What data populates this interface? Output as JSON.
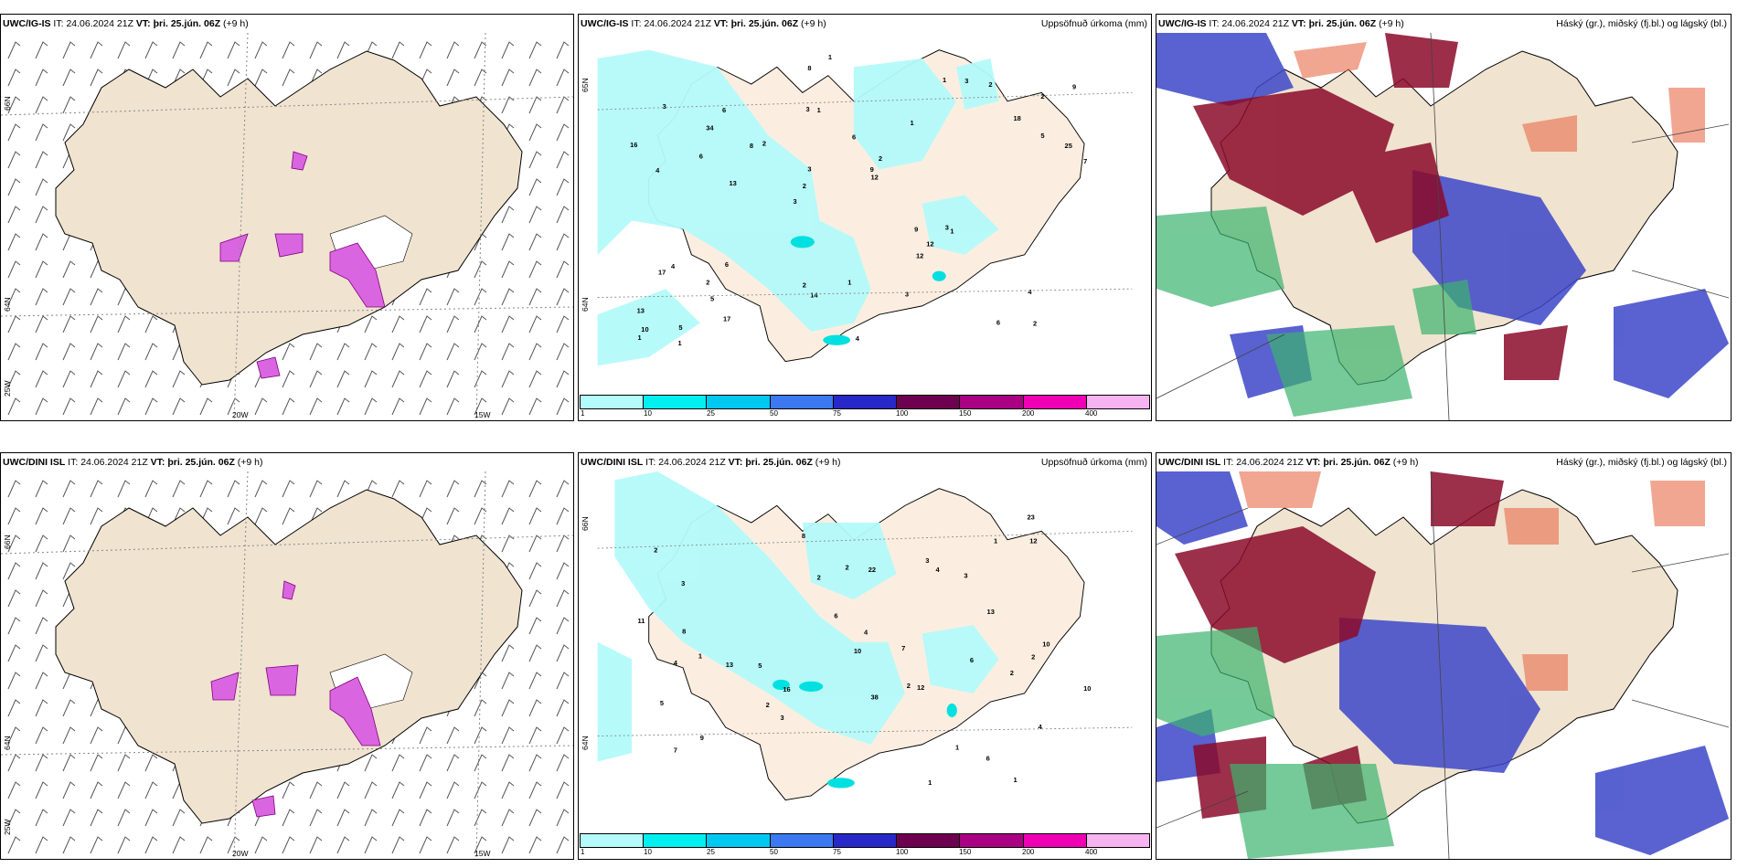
{
  "panels": [
    {
      "id": "top-left",
      "model": "UWC/IG-IS",
      "it_label": "IT:",
      "it_value": "24.06.2024 21Z",
      "vt_label": "VT:",
      "vt_value": "þri. 25.jún. 06Z",
      "lead": "(+9 h)",
      "lon_labels": [
        "20W",
        "15W"
      ],
      "lat_labels": [
        "66N",
        "64N",
        "25W"
      ]
    },
    {
      "id": "top-mid",
      "model": "UWC/IG-IS",
      "it_label": "IT:",
      "it_value": "24.06.2024 21Z",
      "vt_label": "VT:",
      "vt_value": "þri. 25.jún. 06Z",
      "lead": "(+9 h)",
      "title": "Uppsöfnuð úrkoma (mm)",
      "lat_labels": [
        "65N",
        "64N"
      ],
      "numbers": [
        "2",
        "4",
        "2",
        "3",
        "1",
        "5",
        "3",
        "6",
        "4",
        "2",
        "13",
        "5",
        "1",
        "2",
        "1",
        "3",
        "8",
        "7",
        "9",
        "5",
        "2",
        "2",
        "3",
        "6",
        "1",
        "6",
        "6",
        "4",
        "3",
        "4",
        "8",
        "6",
        "12",
        "17",
        "25",
        "9",
        "10",
        "14",
        "12",
        "17",
        "18",
        "9",
        "12",
        "3",
        "2",
        "1",
        "1",
        "1",
        "2",
        "1",
        "13",
        "16",
        "34",
        "3"
      ]
    },
    {
      "id": "top-right",
      "model": "UWC/IG-IS",
      "it_label": "IT:",
      "it_value": "24.06.2024 21Z",
      "vt_label": "VT:",
      "vt_value": "þri. 25.jún. 06Z",
      "lead": "(+9 h)",
      "title": "Háský (gr.), miðský (fj.bl.) og lágský (bl.)"
    },
    {
      "id": "bottom-left",
      "model": "UWC/DINI ISL",
      "it_label": "IT:",
      "it_value": "24.06.2024 21Z",
      "vt_label": "VT:",
      "vt_value": "þri. 25.jún. 06Z",
      "lead": "(+9 h)",
      "lon_labels": [
        "20W",
        "15W"
      ],
      "lat_labels": [
        "66N",
        "64N",
        "25W"
      ]
    },
    {
      "id": "bottom-mid",
      "model": "UWC/DINI ISL",
      "it_label": "IT:",
      "it_value": "24.06.2024 21Z",
      "vt_label": "VT:",
      "vt_value": "þri. 25.jún. 06Z",
      "lead": "(+9 h)",
      "title": "Uppsöfnuð úrkoma (mm)",
      "lat_labels": [
        "66N",
        "64N"
      ],
      "numbers": [
        "1",
        "1",
        "2",
        "2",
        "4",
        "3",
        "9",
        "5",
        "3",
        "2",
        "4",
        "6",
        "3",
        "8",
        "7",
        "5",
        "6",
        "4",
        "11",
        "7",
        "23",
        "22",
        "13",
        "10",
        "10",
        "8",
        "13",
        "10",
        "6",
        "12",
        "12",
        "4",
        "2",
        "3",
        "2",
        "2",
        "2",
        "1",
        "1",
        "1",
        "16",
        "38"
      ]
    },
    {
      "id": "bottom-right",
      "model": "UWC/DINI ISL",
      "it_label": "IT:",
      "it_value": "24.06.2024 21Z",
      "vt_label": "VT:",
      "vt_value": "þri. 25.jún. 06Z",
      "lead": "(+9 h)",
      "title": "Háský (gr.), miðský (fj.bl.) og lágský (bl.)"
    }
  ],
  "legend": {
    "ticks": [
      "1",
      "10",
      "25",
      "50",
      "75",
      "100",
      "150",
      "200",
      "400"
    ],
    "colors": [
      "#b4fafa",
      "#00f0f0",
      "#00c8f0",
      "#3c78f0",
      "#2828c8",
      "#6e0050",
      "#aa0082",
      "#f000b4",
      "#f5b4f0"
    ]
  }
}
